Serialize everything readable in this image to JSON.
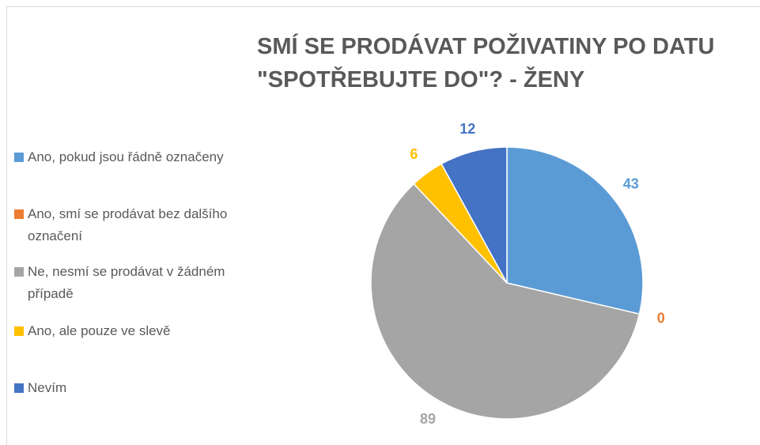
{
  "chart_data": {
    "type": "pie",
    "title": "SMÍ SE PRODÁVAT POŽIVATINY PO DATU \"SPOTŘEBUJTE DO\"? - ŽENY",
    "categories": [
      "Ano, pokud jsou řádně označeny",
      "Ano, smí se prodávat bez dalšího označení",
      "Ne, nesmí se prodávat v žádném případě",
      "Ano, ale pouze ve slevě",
      "Nevím"
    ],
    "values": [
      43,
      0,
      89,
      6,
      12
    ],
    "colors": [
      "#5b9bd5",
      "#ed7d31",
      "#a5a5a5",
      "#ffc000",
      "#4472c4"
    ],
    "legend": "left"
  }
}
